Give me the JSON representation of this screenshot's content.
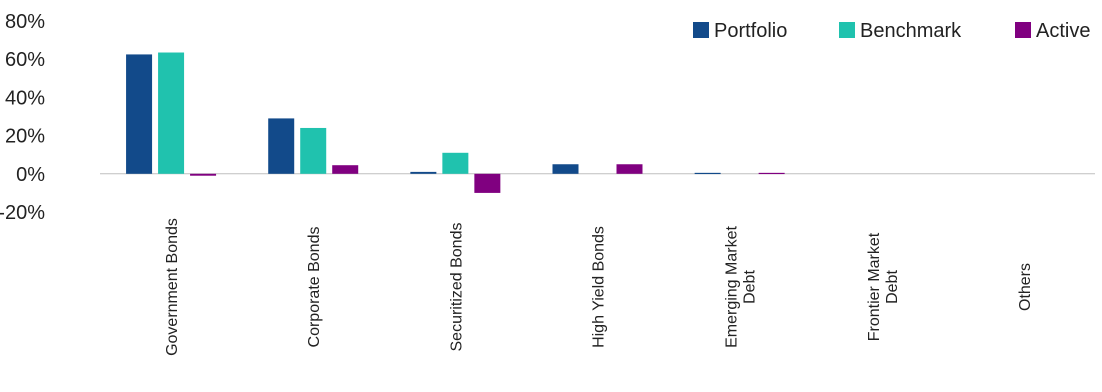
{
  "chart_data": {
    "type": "bar",
    "title": "",
    "xlabel": "",
    "ylabel": "",
    "ylim": [
      -20,
      80
    ],
    "yticks": [
      {
        "value": 80,
        "label": "80%"
      },
      {
        "value": 60,
        "label": "60%"
      },
      {
        "value": 40,
        "label": "40%"
      },
      {
        "value": 20,
        "label": "20%"
      },
      {
        "value": 0,
        "label": "0%"
      },
      {
        "value": -20,
        "label": "-20%"
      }
    ],
    "categories": [
      [
        "Government Bonds"
      ],
      [
        "Corporate Bonds"
      ],
      [
        "Securitized Bonds"
      ],
      [
        "High Yield Bonds"
      ],
      [
        "Emerging Market",
        "Debt"
      ],
      [
        "Frontier Market",
        "Debt"
      ],
      [
        "Others"
      ]
    ],
    "series": [
      {
        "name": "Portfolio",
        "color": "#124A8A",
        "values": [
          62.5,
          29,
          1,
          5,
          0.5,
          0,
          0
        ]
      },
      {
        "name": "Benchmark",
        "color": "#20C2AE",
        "values": [
          63.5,
          24,
          11,
          0,
          0,
          0,
          0
        ]
      },
      {
        "name": "Active",
        "color": "#800080",
        "values": [
          -1,
          4.5,
          -10,
          5,
          0.5,
          0,
          0
        ]
      }
    ],
    "grid": false,
    "legend": "top-right"
  }
}
